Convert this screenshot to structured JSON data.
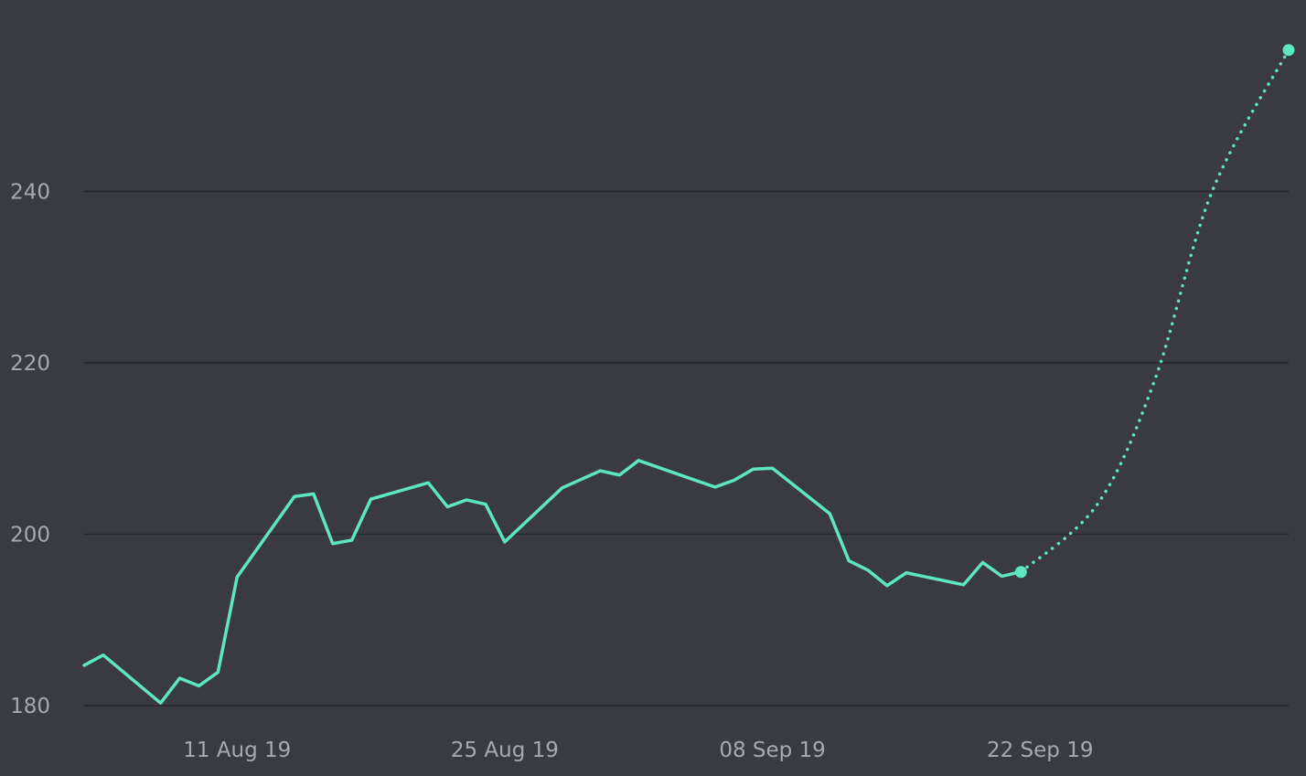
{
  "chart_data": {
    "type": "line",
    "title": "",
    "xlabel": "",
    "ylabel": "",
    "ylim": [
      180,
      257
    ],
    "xlim": [
      "2019-08-03",
      "2019-10-05"
    ],
    "grid": true,
    "y_ticks": [
      {
        "value": 180,
        "label": "180"
      },
      {
        "value": 200,
        "label": "200"
      },
      {
        "value": 220,
        "label": "220"
      },
      {
        "value": 240,
        "label": "240"
      }
    ],
    "x_ticks": [
      {
        "date": "2019-08-11",
        "label": "11 Aug 19"
      },
      {
        "date": "2019-08-25",
        "label": "25 Aug 19"
      },
      {
        "date": "2019-09-08",
        "label": "08 Sep 19"
      },
      {
        "date": "2019-09-22",
        "label": "22 Sep 19"
      }
    ],
    "series": [
      {
        "style": "solid",
        "color": "#5ee6c4",
        "points": [
          {
            "x": "2019-08-03",
            "y": 184.7
          },
          {
            "x": "2019-08-04",
            "y": 185.9
          },
          {
            "x": "2019-08-07",
            "y": 180.3
          },
          {
            "x": "2019-08-08",
            "y": 183.2
          },
          {
            "x": "2019-08-09",
            "y": 182.3
          },
          {
            "x": "2019-08-10",
            "y": 183.9
          },
          {
            "x": "2019-08-11",
            "y": 195.0
          },
          {
            "x": "2019-08-14",
            "y": 204.4
          },
          {
            "x": "2019-08-15",
            "y": 204.7
          },
          {
            "x": "2019-08-16",
            "y": 198.9
          },
          {
            "x": "2019-08-17",
            "y": 199.3
          },
          {
            "x": "2019-08-18",
            "y": 204.1
          },
          {
            "x": "2019-08-21",
            "y": 206.0
          },
          {
            "x": "2019-08-22",
            "y": 203.2
          },
          {
            "x": "2019-08-23",
            "y": 204.0
          },
          {
            "x": "2019-08-24",
            "y": 203.5
          },
          {
            "x": "2019-08-25",
            "y": 199.1
          },
          {
            "x": "2019-08-28",
            "y": 205.4
          },
          {
            "x": "2019-08-30",
            "y": 207.4
          },
          {
            "x": "2019-08-31",
            "y": 206.9
          },
          {
            "x": "2019-09-01",
            "y": 208.6
          },
          {
            "x": "2019-09-05",
            "y": 205.5
          },
          {
            "x": "2019-09-06",
            "y": 206.3
          },
          {
            "x": "2019-09-07",
            "y": 207.6
          },
          {
            "x": "2019-09-08",
            "y": 207.7
          },
          {
            "x": "2019-09-11",
            "y": 202.4
          },
          {
            "x": "2019-09-12",
            "y": 196.9
          },
          {
            "x": "2019-09-13",
            "y": 195.8
          },
          {
            "x": "2019-09-14",
            "y": 194.0
          },
          {
            "x": "2019-09-15",
            "y": 195.5
          },
          {
            "x": "2019-09-18",
            "y": 194.1
          },
          {
            "x": "2019-09-19",
            "y": 196.7
          },
          {
            "x": "2019-09-20",
            "y": 195.1
          },
          {
            "x": "2019-09-21",
            "y": 195.6
          }
        ]
      },
      {
        "style": "dotted",
        "color": "#5ee6c4",
        "points": [
          {
            "x": "2019-09-21",
            "y": 195.6
          },
          {
            "x": "2019-09-25",
            "y": 203.5
          },
          {
            "x": "2019-09-28",
            "y": 218.0
          },
          {
            "x": "2019-10-01",
            "y": 240.0
          },
          {
            "x": "2019-10-05",
            "y": 256.5
          }
        ]
      }
    ]
  }
}
